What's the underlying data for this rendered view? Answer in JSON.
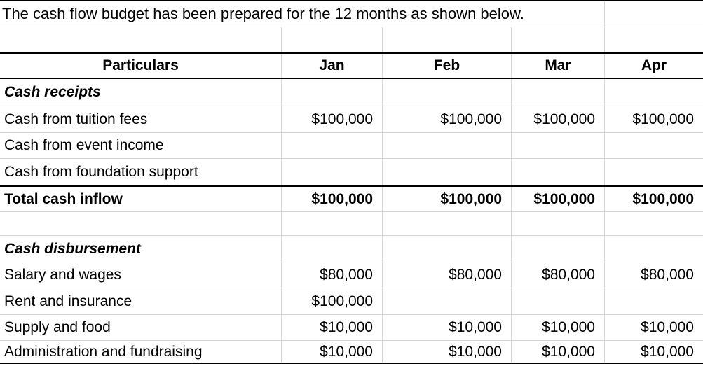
{
  "caption": "The cash flow budget has been prepared for the 12 months as shown below.",
  "table": {
    "columns": [
      "Particulars",
      "Jan",
      "Feb",
      "Mar",
      "Apr"
    ],
    "rows": [
      {
        "label": "Cash receipts",
        "jan": "",
        "feb": "",
        "mar": "",
        "apr": ""
      },
      {
        "label": "Cash from tuition fees",
        "jan": "$100,000",
        "feb": "$100,000",
        "mar": "$100,000",
        "apr": "$100,000"
      },
      {
        "label": "Cash from event income",
        "jan": "",
        "feb": "",
        "mar": "",
        "apr": ""
      },
      {
        "label": "Cash from foundation support",
        "jan": "",
        "feb": "",
        "mar": "",
        "apr": ""
      },
      {
        "label": "Total cash inflow",
        "jan": "$100,000",
        "feb": "$100,000",
        "mar": "$100,000",
        "apr": "$100,000"
      },
      {
        "label": "",
        "jan": "",
        "feb": "",
        "mar": "",
        "apr": ""
      },
      {
        "label": "Cash disbursement",
        "jan": "",
        "feb": "",
        "mar": "",
        "apr": ""
      },
      {
        "label": "Salary and wages",
        "jan": "$80,000",
        "feb": "$80,000",
        "mar": "$80,000",
        "apr": "$80,000"
      },
      {
        "label": "Rent and insurance",
        "jan": "$100,000",
        "feb": "",
        "mar": "",
        "apr": ""
      },
      {
        "label": "Supply and food",
        "jan": "$10,000",
        "feb": "$10,000",
        "mar": "$10,000",
        "apr": "$10,000"
      },
      {
        "label": "Administration and fundraising",
        "jan": "$10,000",
        "feb": "$10,000",
        "mar": "$10,000",
        "apr": "$10,000"
      }
    ]
  },
  "colors": {
    "text": "#000000",
    "background": "#ffffff",
    "grid_line": "#d4d4d4",
    "heavy_border": "#000000"
  }
}
